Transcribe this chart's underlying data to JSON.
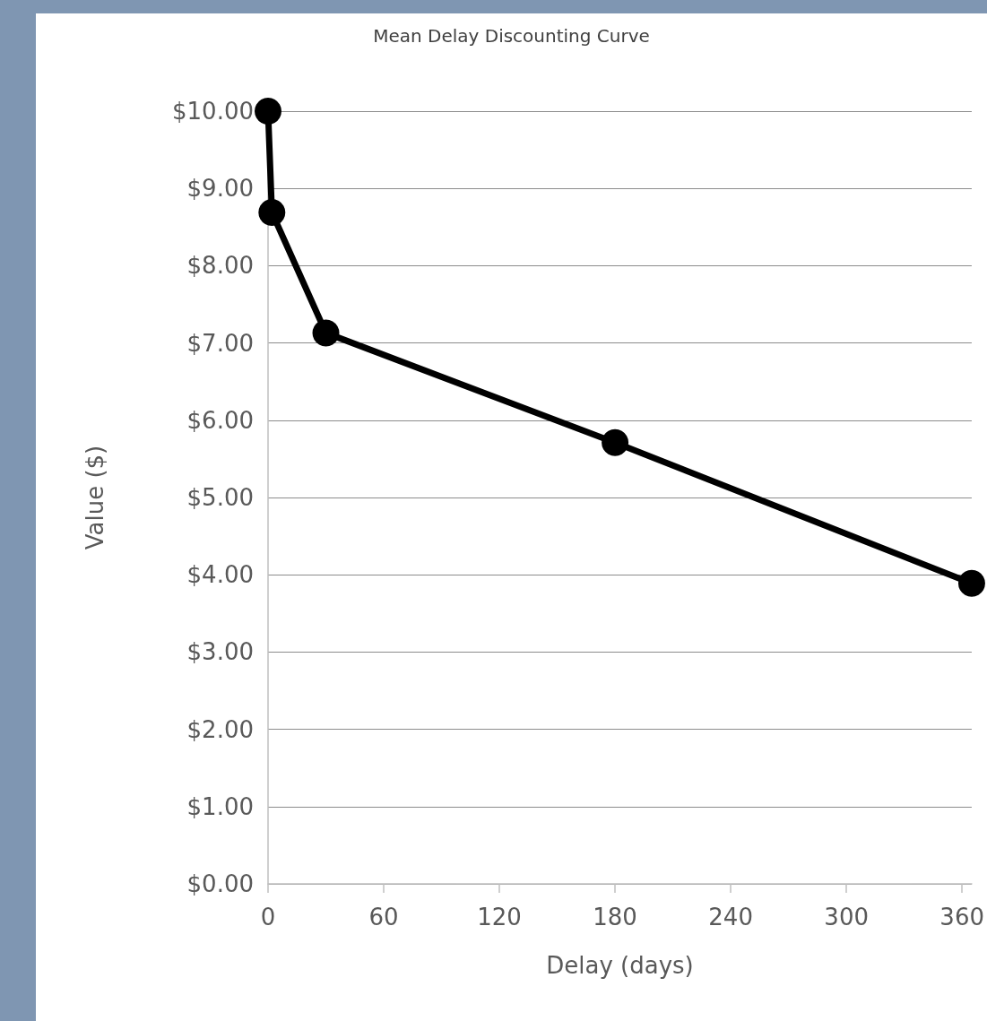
{
  "chart_data": {
    "type": "line",
    "title": "Mean Delay Discounting Curve",
    "xlabel": "Delay (days)",
    "ylabel": "Value ($)",
    "x": [
      0,
      2,
      30,
      180,
      365
    ],
    "series": [
      {
        "color": "#000000",
        "values": [
          10,
          8.69,
          7.13,
          5.71,
          3.89
        ]
      }
    ],
    "xlim": [
      0,
      365
    ],
    "xticks": [
      0,
      60,
      120,
      180,
      240,
      300,
      360
    ],
    "ylim": [
      0,
      10
    ],
    "yticks": [
      {
        "value": 0,
        "label": "$0.00"
      },
      {
        "value": 1,
        "label": "$1.00"
      },
      {
        "value": 2,
        "label": "$2.00"
      },
      {
        "value": 3,
        "label": "$3.00"
      },
      {
        "value": 4,
        "label": "$4.00"
      },
      {
        "value": 5,
        "label": "$5.00"
      },
      {
        "value": 6,
        "label": "$6.00"
      },
      {
        "value": 7,
        "label": "$7.00"
      },
      {
        "value": 8,
        "label": "$8.00"
      },
      {
        "value": 9,
        "label": "$9.00"
      },
      {
        "value": 10,
        "label": "$10.00"
      }
    ],
    "grid": "y",
    "marker": "circle",
    "line_style": "solid"
  }
}
